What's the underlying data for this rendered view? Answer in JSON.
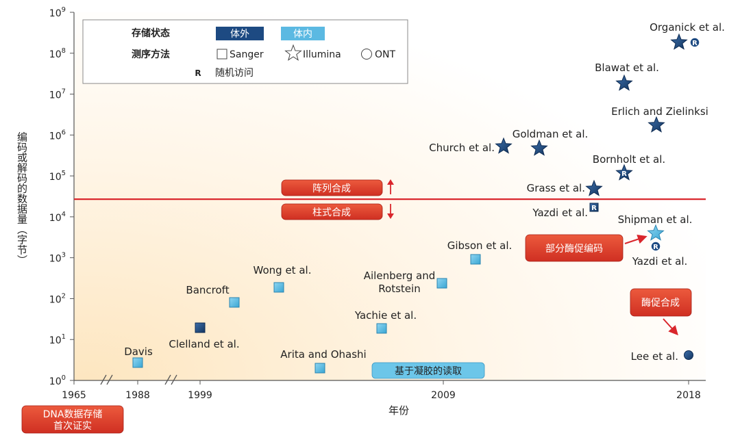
{
  "chart_data": {
    "type": "scatter",
    "xlabel": "年份",
    "ylabel": "编码或解码的数据量（字节）",
    "x_ticks": [
      "1965",
      "1988",
      "1999",
      "2009",
      "2018"
    ],
    "y_ticks": [
      {
        "base": "10",
        "exp": "0"
      },
      {
        "base": "10",
        "exp": "1"
      },
      {
        "base": "10",
        "exp": "2"
      },
      {
        "base": "10",
        "exp": "3"
      },
      {
        "base": "10",
        "exp": "4"
      },
      {
        "base": "10",
        "exp": "5"
      },
      {
        "base": "10",
        "exp": "6"
      },
      {
        "base": "10",
        "exp": "7"
      },
      {
        "base": "10",
        "exp": "8"
      },
      {
        "base": "10",
        "exp": "9"
      }
    ],
    "y_scale": "log",
    "ylim": [
      1,
      1000000000
    ],
    "legend": {
      "storage_title": "存储状态",
      "in_vitro": "体外",
      "in_vivo": "体内",
      "sequencing_title": "测序方法",
      "sanger": "Sanger",
      "illumina": "Illumina",
      "ont": "ONT",
      "random_access_symbol": "R",
      "random_access": "随机访问"
    },
    "points": [
      {
        "label": "Davis",
        "year": 1988,
        "bytes": 2.5,
        "storage": "in_vivo",
        "method": "sanger",
        "random_access": false
      },
      {
        "label": "Clelland et al.",
        "year": 1999,
        "bytes": 20,
        "storage": "in_vitro",
        "method": "sanger",
        "random_access": false
      },
      {
        "label": "Bancroft",
        "year": 2001,
        "bytes": 80,
        "storage": "in_vivo",
        "method": "sanger",
        "random_access": false
      },
      {
        "label": "Wong et al.",
        "year": 2003,
        "bytes": 180,
        "storage": "in_vivo",
        "method": "sanger",
        "random_access": false
      },
      {
        "label": "Arita and Ohashi",
        "year": 2004,
        "bytes": 1.9,
        "storage": "in_vivo",
        "method": "sanger",
        "random_access": false
      },
      {
        "label": "Yachie et al.",
        "year": 2007,
        "bytes": 18,
        "storage": "in_vivo",
        "method": "sanger",
        "random_access": false
      },
      {
        "label": "Ailenberg and Rotstein",
        "year": 2009,
        "bytes": 220,
        "storage": "in_vivo",
        "method": "sanger",
        "random_access": false
      },
      {
        "label": "Gibson et al.",
        "year": 2010,
        "bytes": 900,
        "storage": "in_vivo",
        "method": "sanger",
        "random_access": false
      },
      {
        "label": "Church et al.",
        "year": 2012,
        "bytes": 520000,
        "storage": "in_vitro",
        "method": "illumina",
        "random_access": false
      },
      {
        "label": "Goldman et al.",
        "year": 2013,
        "bytes": 450000,
        "storage": "in_vitro",
        "method": "illumina",
        "random_access": false
      },
      {
        "label": "Grass et al.",
        "year": 2015,
        "bytes": 48000,
        "storage": "in_vitro",
        "method": "illumina",
        "random_access": false
      },
      {
        "label": "Yazdi et al.",
        "year": 2015,
        "bytes": 22000,
        "storage": "in_vitro",
        "method": "sanger",
        "random_access": true
      },
      {
        "label": "Bornholt et al.",
        "year": 2016,
        "bytes": 110000,
        "storage": "in_vitro",
        "method": "illumina",
        "random_access": true
      },
      {
        "label": "Blawat et al.",
        "year": 2016,
        "bytes": 18000000,
        "storage": "in_vitro",
        "method": "illumina",
        "random_access": false
      },
      {
        "label": "Erlich and Zielinksi",
        "year": 2017,
        "bytes": 1700000,
        "storage": "in_vitro",
        "method": "illumina",
        "random_access": false
      },
      {
        "label": "Organick et al.",
        "year": 2017,
        "bytes": 200000000,
        "storage": "in_vitro",
        "method": "illumina",
        "random_access": true
      },
      {
        "label": "Shipman et al.",
        "year": 2017,
        "bytes": 3700,
        "storage": "in_vivo",
        "method": "illumina",
        "random_access": false
      },
      {
        "label": "Yazdi et al.",
        "year": 2017,
        "bytes": 3700,
        "storage": "in_vitro",
        "method": "ont",
        "random_access": true
      },
      {
        "label": "Lee et al.",
        "year": 2018,
        "bytes": 4,
        "storage": "in_vitro",
        "method": "ont",
        "random_access": false
      }
    ],
    "threshold_line_bytes": 27000,
    "annotations": {
      "array_synthesis": "阵列合成",
      "column_synthesis": "柱式合成",
      "enzymatic_partial": "部分酶促编码",
      "enzymatic_synthesis": "酶促合成",
      "gel_readout": "基于凝胶的读取",
      "first_demo": "DNA数据存储首次证实"
    },
    "colors": {
      "in_vitro": "#1d4a82",
      "in_vivo": "#5bb9e2",
      "threshold": "#d9262c",
      "callout_fill": "#e0412d",
      "gel_box": "#6cc6e9"
    }
  }
}
